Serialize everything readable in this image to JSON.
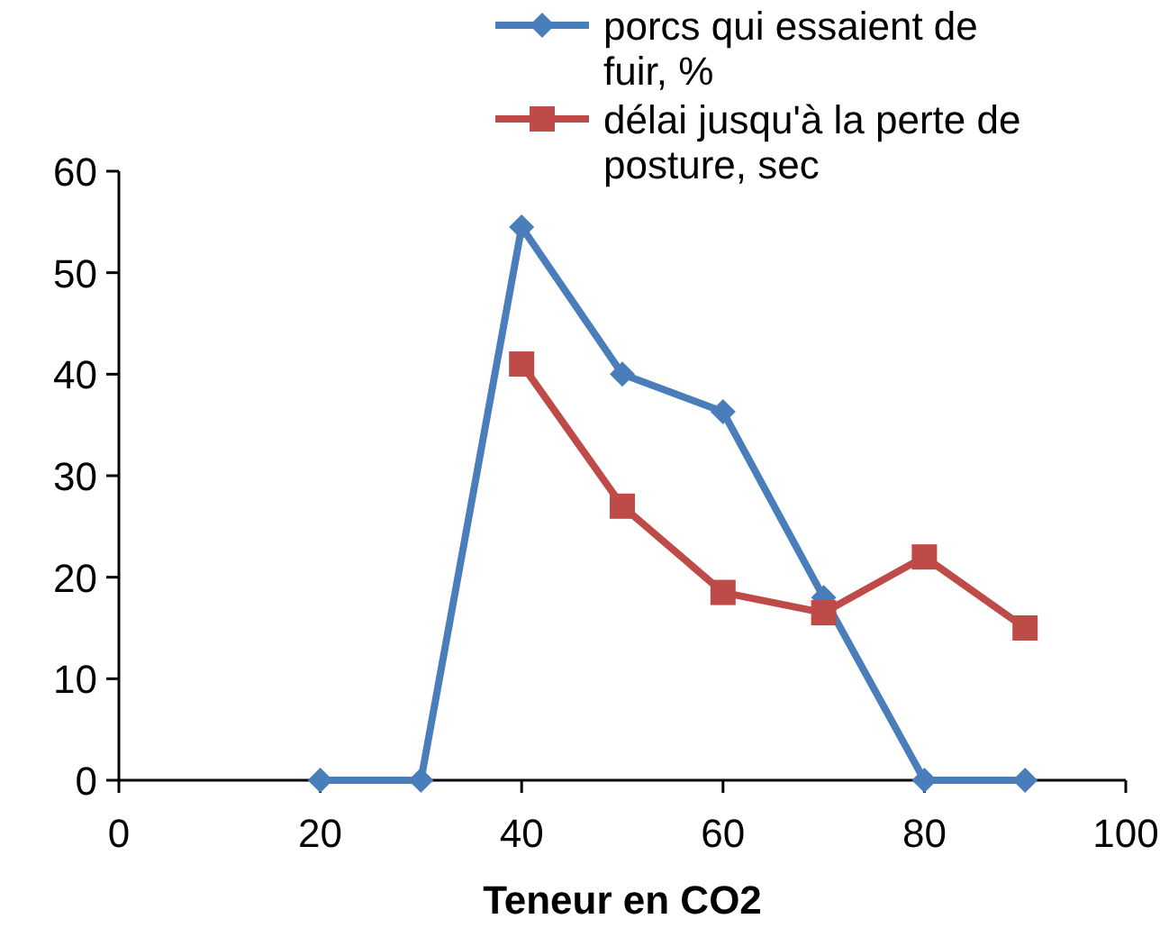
{
  "chart_data": {
    "type": "line",
    "xlabel": "Teneur en CO2",
    "x": [
      20,
      30,
      40,
      50,
      60,
      70,
      80,
      90
    ],
    "series": [
      {
        "name": "porcs qui essaient de fuir, %",
        "color": "#4a7ebb",
        "marker": "diamond",
        "values": [
          0,
          0,
          54.5,
          40,
          36.3,
          18,
          0,
          0
        ]
      },
      {
        "name": "délai jusqu'à la perte de posture, sec",
        "color": "#be4b48",
        "marker": "square",
        "values": [
          null,
          null,
          41,
          27,
          18.5,
          16.5,
          22,
          15
        ]
      }
    ],
    "xlim": [
      0,
      100
    ],
    "xticks": [
      0,
      20,
      40,
      60,
      80,
      100
    ],
    "ylim": [
      0,
      60
    ],
    "yticks": [
      0,
      10,
      20,
      30,
      40,
      50,
      60
    ],
    "grid": false,
    "legend": "top right"
  }
}
